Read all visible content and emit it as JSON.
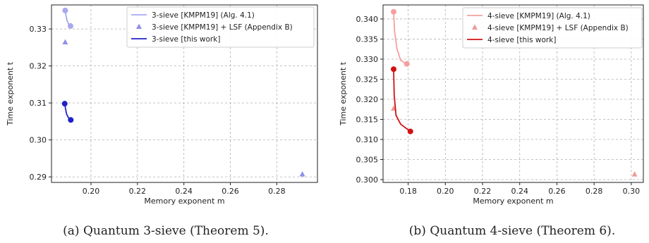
{
  "chart_data": [
    {
      "type": "line",
      "caption": "(a) Quantum 3-sieve (Theorem 5).",
      "xlabel": "Memory exponent m",
      "ylabel": "Time exponent t",
      "xlim": [
        0.183,
        0.2975
      ],
      "ylim": [
        0.2885,
        0.3365
      ],
      "xticks": [
        0.2,
        0.22,
        0.24,
        0.26,
        0.28
      ],
      "yticks": [
        0.29,
        0.3,
        0.31,
        0.32,
        0.33
      ],
      "xtick_labels": [
        "0.20",
        "0.22",
        "0.24",
        "0.26",
        "0.28"
      ],
      "ytick_labels": [
        "0.29",
        "0.30",
        "0.31",
        "0.32",
        "0.33"
      ],
      "grid": true,
      "legend_position": "top-right",
      "series": [
        {
          "name": "3-sieve [KMPM19] (Alg. 4.1)",
          "style": "line-markers",
          "color": "#a8a8f0",
          "x": [
            0.1889,
            0.1893,
            0.1897,
            0.1904,
            0.1912
          ],
          "y": [
            0.335,
            0.3335,
            0.3322,
            0.3313,
            0.3308
          ]
        },
        {
          "name": "3-sieve [KMPM19] + LSF (Appendix B)",
          "style": "triangles",
          "color": "#9090e8",
          "x": [
            0.1889,
            0.291
          ],
          "y": [
            0.3264,
            0.2907
          ]
        },
        {
          "name": "3-sieve [this work]",
          "style": "line-markers",
          "color": "#2020c8",
          "x": [
            0.1887,
            0.189,
            0.1895,
            0.1903,
            0.1913
          ],
          "y": [
            0.3098,
            0.3085,
            0.307,
            0.306,
            0.3054
          ]
        }
      ]
    },
    {
      "type": "line",
      "caption": "(b) Quantum 4-sieve (Theorem 6).",
      "xlabel": "Memory exponent m",
      "ylabel": "Time exponent t",
      "xlim": [
        0.1665,
        0.3065
      ],
      "ylim": [
        0.2993,
        0.3435
      ],
      "xticks": [
        0.18,
        0.2,
        0.22,
        0.24,
        0.26,
        0.28,
        0.3
      ],
      "yticks": [
        0.3,
        0.305,
        0.31,
        0.315,
        0.32,
        0.325,
        0.33,
        0.335,
        0.34
      ],
      "xtick_labels": [
        "0.18",
        "0.20",
        "0.22",
        "0.24",
        "0.26",
        "0.28",
        "0.30"
      ],
      "ytick_labels": [
        "0.300",
        "0.305",
        "0.310",
        "0.315",
        "0.320",
        "0.325",
        "0.330",
        "0.335",
        "0.340"
      ],
      "grid": true,
      "legend_position": "top-right",
      "series": [
        {
          "name": "4-sieve [KMPM19] (Alg. 4.1)",
          "style": "line-markers",
          "color": "#f5a0a0",
          "x": [
            0.1722,
            0.1727,
            0.174,
            0.176,
            0.1793
          ],
          "y": [
            0.3418,
            0.337,
            0.3325,
            0.3297,
            0.3288
          ]
        },
        {
          "name": "4-sieve [KMPM19] + LSF (Appendix B)",
          "style": "triangles",
          "color": "#f09a9a",
          "x": [
            0.1722,
            0.3018
          ],
          "y": [
            0.3177,
            0.3013
          ]
        },
        {
          "name": "4-sieve [this work]",
          "style": "line-markers",
          "color": "#d41010",
          "x": [
            0.1722,
            0.1725,
            0.1735,
            0.176,
            0.1812
          ],
          "y": [
            0.3275,
            0.321,
            0.316,
            0.3138,
            0.312
          ]
        }
      ]
    }
  ]
}
